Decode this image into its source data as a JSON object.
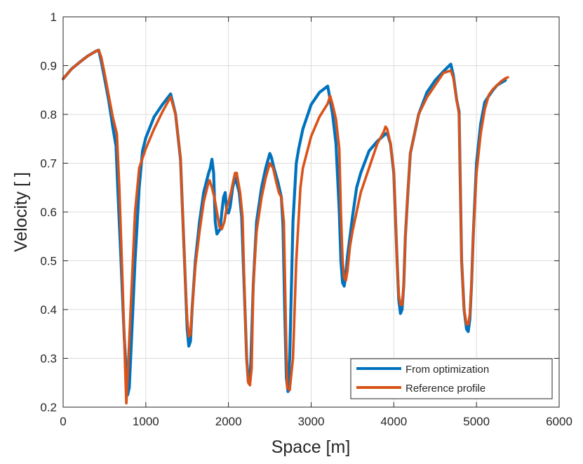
{
  "chart_data": {
    "type": "line",
    "title": "",
    "xlabel": "Space [m]",
    "ylabel": "Velocity [ ]",
    "xlim": [
      0,
      6000
    ],
    "ylim": [
      0.2,
      1.0
    ],
    "xticks": [
      0,
      1000,
      2000,
      3000,
      4000,
      5000,
      6000
    ],
    "yticks": [
      0.2,
      0.3,
      0.4,
      0.5,
      0.6,
      0.7,
      0.8,
      0.9,
      1.0
    ],
    "xtick_labels": [
      "0",
      "1000",
      "2000",
      "3000",
      "4000",
      "5000",
      "6000"
    ],
    "ytick_labels": [
      "0.2",
      "0.3",
      "0.4",
      "0.5",
      "0.6",
      "0.7",
      "0.8",
      "0.9",
      "1"
    ],
    "grid": true,
    "legend_position": "bottom-right",
    "series": [
      {
        "name": "From optimization",
        "color": "#0072BD",
        "x": [
          0,
          100,
          200,
          300,
          400,
          430,
          460,
          500,
          550,
          600,
          640,
          660,
          700,
          740,
          780,
          800,
          830,
          870,
          920,
          960,
          1000,
          1100,
          1200,
          1300,
          1360,
          1420,
          1440,
          1480,
          1500,
          1520,
          1540,
          1560,
          1600,
          1650,
          1700,
          1760,
          1780,
          1800,
          1820,
          1840,
          1860,
          1880,
          1900,
          1920,
          1940,
          1960,
          1980,
          2000,
          2020,
          2050,
          2080,
          2100,
          2130,
          2160,
          2200,
          2220,
          2240,
          2260,
          2270,
          2300,
          2340,
          2400,
          2450,
          2500,
          2520,
          2550,
          2600,
          2640,
          2660,
          2680,
          2700,
          2720,
          2740,
          2780,
          2820,
          2850,
          2900,
          3000,
          3100,
          3200,
          3220,
          3260,
          3300,
          3340,
          3360,
          3380,
          3400,
          3420,
          3440,
          3470,
          3500,
          3550,
          3600,
          3700,
          3800,
          3900,
          3920,
          3960,
          4000,
          4040,
          4060,
          4080,
          4100,
          4120,
          4140,
          4170,
          4200,
          4250,
          4300,
          4400,
          4500,
          4600,
          4690,
          4720,
          4760,
          4790,
          4800,
          4820,
          4850,
          4880,
          4900,
          4920,
          4940,
          4960,
          5000,
          5050,
          5100,
          5150,
          5200,
          5250,
          5300,
          5350
        ],
        "values": [
          0.873,
          0.893,
          0.907,
          0.92,
          0.93,
          0.932,
          0.91,
          0.875,
          0.83,
          0.775,
          0.735,
          0.65,
          0.5,
          0.34,
          0.225,
          0.24,
          0.35,
          0.5,
          0.65,
          0.725,
          0.752,
          0.795,
          0.82,
          0.842,
          0.8,
          0.708,
          0.62,
          0.45,
          0.36,
          0.325,
          0.335,
          0.4,
          0.5,
          0.58,
          0.64,
          0.68,
          0.69,
          0.708,
          0.68,
          0.58,
          0.555,
          0.56,
          0.565,
          0.6,
          0.63,
          0.64,
          0.6,
          0.598,
          0.61,
          0.65,
          0.67,
          0.66,
          0.64,
          0.59,
          0.4,
          0.3,
          0.252,
          0.26,
          0.29,
          0.45,
          0.58,
          0.65,
          0.69,
          0.72,
          0.712,
          0.69,
          0.66,
          0.63,
          0.57,
          0.4,
          0.26,
          0.232,
          0.3,
          0.58,
          0.7,
          0.73,
          0.77,
          0.82,
          0.845,
          0.858,
          0.84,
          0.8,
          0.74,
          0.6,
          0.5,
          0.455,
          0.448,
          0.47,
          0.51,
          0.55,
          0.59,
          0.65,
          0.68,
          0.725,
          0.745,
          0.76,
          0.762,
          0.74,
          0.68,
          0.5,
          0.42,
          0.392,
          0.4,
          0.45,
          0.55,
          0.64,
          0.72,
          0.76,
          0.8,
          0.845,
          0.87,
          0.888,
          0.903,
          0.88,
          0.83,
          0.805,
          0.7,
          0.5,
          0.4,
          0.36,
          0.355,
          0.38,
          0.45,
          0.55,
          0.7,
          0.78,
          0.825,
          0.838,
          0.85,
          0.86,
          0.865,
          0.87
        ]
      },
      {
        "name": "Reference profile",
        "color": "#D95319",
        "x": [
          0,
          100,
          200,
          300,
          400,
          430,
          460,
          500,
          550,
          600,
          650,
          680,
          720,
          750,
          765,
          790,
          830,
          870,
          920,
          960,
          1000,
          1100,
          1200,
          1300,
          1360,
          1420,
          1440,
          1480,
          1500,
          1520,
          1540,
          1560,
          1600,
          1650,
          1700,
          1750,
          1770,
          1800,
          1830,
          1860,
          1890,
          1920,
          1950,
          1980,
          2000,
          2030,
          2060,
          2080,
          2100,
          2120,
          2140,
          2170,
          2200,
          2220,
          2240,
          2260,
          2280,
          2300,
          2340,
          2400,
          2450,
          2500,
          2540,
          2580,
          2610,
          2640,
          2670,
          2690,
          2710,
          2740,
          2780,
          2820,
          2870,
          2900,
          3000,
          3100,
          3200,
          3230,
          3260,
          3300,
          3340,
          3360,
          3380,
          3400,
          3420,
          3440,
          3470,
          3500,
          3550,
          3600,
          3700,
          3800,
          3880,
          3900,
          3920,
          3960,
          4000,
          4040,
          4060,
          4080,
          4100,
          4120,
          4140,
          4170,
          4200,
          4250,
          4300,
          4400,
          4500,
          4600,
          4690,
          4720,
          4760,
          4790,
          4800,
          4820,
          4850,
          4880,
          4900,
          4920,
          4940,
          4960,
          5000,
          5050,
          5100,
          5150,
          5200,
          5250,
          5300,
          5350,
          5380
        ],
        "values": [
          0.873,
          0.893,
          0.907,
          0.92,
          0.93,
          0.932,
          0.918,
          0.885,
          0.84,
          0.795,
          0.76,
          0.65,
          0.45,
          0.28,
          0.208,
          0.3,
          0.45,
          0.6,
          0.69,
          0.71,
          0.73,
          0.77,
          0.805,
          0.836,
          0.8,
          0.71,
          0.62,
          0.45,
          0.38,
          0.345,
          0.348,
          0.4,
          0.49,
          0.56,
          0.62,
          0.655,
          0.665,
          0.65,
          0.63,
          0.6,
          0.57,
          0.565,
          0.58,
          0.61,
          0.62,
          0.64,
          0.665,
          0.68,
          0.68,
          0.66,
          0.64,
          0.59,
          0.4,
          0.3,
          0.25,
          0.245,
          0.28,
          0.45,
          0.56,
          0.63,
          0.67,
          0.7,
          0.69,
          0.66,
          0.64,
          0.63,
          0.58,
          0.4,
          0.24,
          0.235,
          0.3,
          0.5,
          0.65,
          0.69,
          0.755,
          0.795,
          0.822,
          0.838,
          0.82,
          0.79,
          0.73,
          0.6,
          0.5,
          0.465,
          0.46,
          0.48,
          0.53,
          0.56,
          0.6,
          0.64,
          0.69,
          0.74,
          0.765,
          0.775,
          0.77,
          0.74,
          0.685,
          0.5,
          0.43,
          0.41,
          0.41,
          0.45,
          0.55,
          0.64,
          0.72,
          0.76,
          0.8,
          0.835,
          0.86,
          0.885,
          0.89,
          0.875,
          0.83,
          0.8,
          0.7,
          0.5,
          0.4,
          0.37,
          0.37,
          0.39,
          0.45,
          0.55,
          0.68,
          0.76,
          0.81,
          0.84,
          0.852,
          0.86,
          0.868,
          0.874,
          0.876
        ]
      }
    ]
  }
}
